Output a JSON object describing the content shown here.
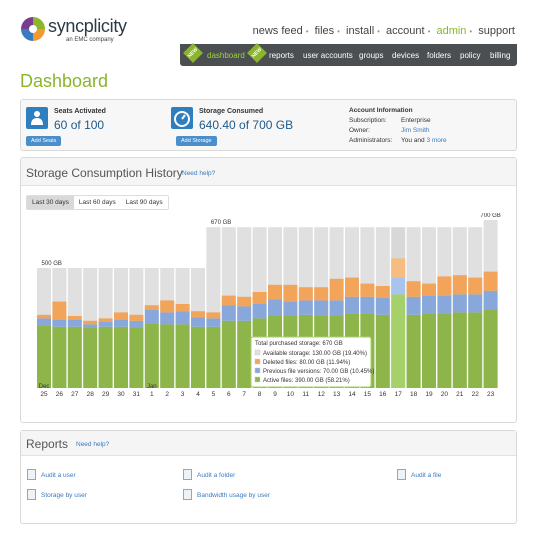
{
  "brand": {
    "name": "syncplicity",
    "sub": "an EMC company"
  },
  "topnav": [
    "news feed",
    "files",
    "install",
    "account",
    "admin",
    "support"
  ],
  "topnav_active": "admin",
  "subnav": {
    "new_badge": "NEW",
    "items": [
      "dashboard",
      "reports",
      "user accounts",
      "groups",
      "devices",
      "folders",
      "policy",
      "billing"
    ]
  },
  "page_title": "Dashboard",
  "seats": {
    "label": "Seats Activated",
    "used": "60",
    "of": "of",
    "total": "100",
    "button": "Add Seats"
  },
  "storage": {
    "label": "Storage Consumed",
    "used": "640.40",
    "of": "of",
    "total": "700 GB",
    "button": "Add Storage"
  },
  "account": {
    "title": "Account Information",
    "subscription_label": "Subscription:",
    "subscription": "Enterprise",
    "owner_label": "Owner:",
    "owner": "Jim Smith",
    "admins_label": "Administrators:",
    "admins": "You and",
    "admins_more": "3 more"
  },
  "history": {
    "title": "Storage Consumption History",
    "help": "Need help?",
    "ranges": [
      "Last 30 days",
      "Last 60 days",
      "Last 90 days"
    ],
    "active_range": "Last 30 days"
  },
  "colors": {
    "active": "#8db54a",
    "previous": "#88a8dc",
    "deleted": "#f2a45a",
    "available": "#e0e0e0",
    "brand_green": "#8ab52c",
    "accent_blue": "#3a7bc0"
  },
  "chart_data": {
    "type": "bar",
    "stacked": true,
    "categories": [
      "25",
      "26",
      "27",
      "28",
      "29",
      "30",
      "31",
      "1",
      "2",
      "3",
      "4",
      "5",
      "6",
      "7",
      "8",
      "9",
      "10",
      "11",
      "12",
      "13",
      "14",
      "15",
      "16",
      "17",
      "18",
      "19",
      "20",
      "21",
      "22",
      "23"
    ],
    "month_labels": [
      {
        "label": "Dec",
        "at": "25"
      },
      {
        "label": "Jan",
        "at": "1"
      }
    ],
    "capacity_annotations": [
      {
        "label": "500 GB",
        "value": 500,
        "from": "25",
        "to": "4"
      },
      {
        "label": "670 GB",
        "value": 670,
        "from": "5",
        "to": "22"
      },
      {
        "label": "700 GB",
        "value": 700,
        "from": "23",
        "to": "23"
      }
    ],
    "series": [
      {
        "name": "Active files",
        "color": "#8db54a",
        "values": [
          260,
          255,
          255,
          250,
          255,
          255,
          250,
          270,
          265,
          265,
          255,
          255,
          280,
          280,
          290,
          300,
          300,
          305,
          300,
          300,
          310,
          310,
          305,
          390,
          305,
          310,
          310,
          315,
          315,
          325
        ]
      },
      {
        "name": "Previous file versions",
        "color": "#88a8dc",
        "values": [
          30,
          30,
          30,
          15,
          20,
          30,
          30,
          55,
          50,
          55,
          40,
          35,
          65,
          60,
          60,
          70,
          60,
          60,
          65,
          65,
          70,
          70,
          70,
          70,
          75,
          75,
          75,
          75,
          75,
          80
        ]
      },
      {
        "name": "Deleted files",
        "color": "#f2a45a",
        "values": [
          15,
          75,
          15,
          15,
          15,
          30,
          25,
          20,
          50,
          30,
          25,
          25,
          40,
          40,
          50,
          60,
          70,
          55,
          55,
          90,
          80,
          55,
          50,
          80,
          65,
          50,
          80,
          80,
          70,
          80
        ]
      }
    ],
    "tooltip": {
      "category": "17",
      "title": "Total purchased storage:",
      "title_value": "670 GB",
      "rows": [
        {
          "label": "Available storage:",
          "value": "130.00 GB (19.40%)"
        },
        {
          "label": "Deleted files:",
          "value": "80.00 GB (11.94%)"
        },
        {
          "label": "Previous file versions:",
          "value": "70.00 GB (10.45%)"
        },
        {
          "label": "Active files:",
          "value": "390.00 GB (58.21%)"
        }
      ]
    }
  },
  "reports": {
    "title": "Reports",
    "help": "Need help?",
    "items": [
      "Audit a user",
      "Audit a folder",
      "Audit a file",
      "Storage by user",
      "Bandwidth usage by user"
    ]
  }
}
